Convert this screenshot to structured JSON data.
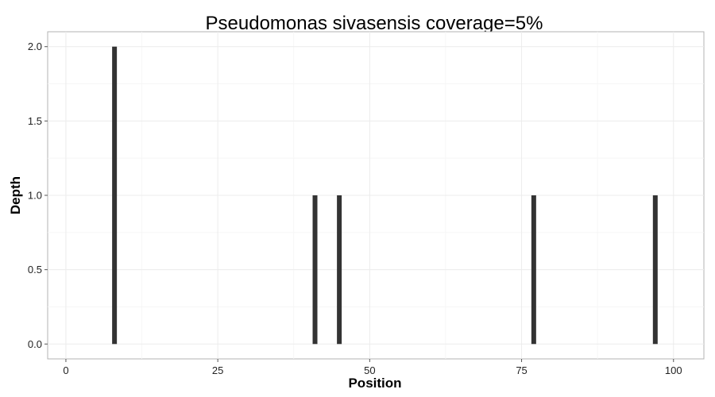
{
  "chart_data": {
    "type": "bar",
    "title": "Pseudomonas sivasensis coverage=5%",
    "xlabel": "Position",
    "ylabel": "Depth",
    "x_ticks": [
      "0",
      "25",
      "50",
      "75",
      "100"
    ],
    "y_ticks": [
      "0.0",
      "0.5",
      "1.0",
      "1.5",
      "2.0"
    ],
    "xlim": [
      -3,
      105
    ],
    "ylim": [
      -0.1,
      2.1
    ],
    "grid": true,
    "legend": "none",
    "bar_color": "#333333",
    "x": [
      8,
      41,
      45,
      77,
      97
    ],
    "values": [
      2,
      1,
      1,
      1,
      1
    ]
  }
}
